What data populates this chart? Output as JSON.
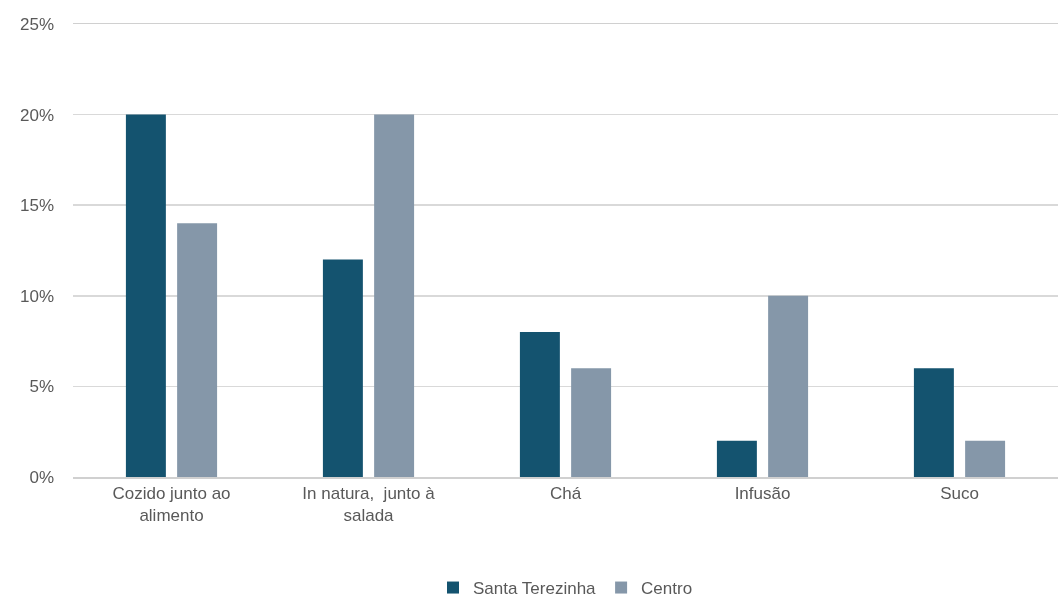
{
  "chart_data": {
    "type": "bar",
    "categories": [
      "Cozido junto ao alimento",
      "In natura,  junto à salada",
      "Chá",
      "Infusão",
      "Suco"
    ],
    "series": [
      {
        "name": "Santa Terezinha",
        "color": "#14536f",
        "values": [
          20,
          12,
          8,
          2,
          6
        ]
      },
      {
        "name": "Centro",
        "color": "#8597a9",
        "values": [
          14,
          20,
          6,
          10,
          2
        ]
      }
    ],
    "ylim": [
      0,
      25
    ],
    "yticks": [
      {
        "value": 0,
        "label": "0%"
      },
      {
        "value": 5,
        "label": "5%"
      },
      {
        "value": 10,
        "label": "10%"
      },
      {
        "value": 15,
        "label": "15%"
      },
      {
        "value": 20,
        "label": "20%"
      },
      {
        "value": 25,
        "label": "25%"
      }
    ],
    "grid": "y",
    "legend": "bottom"
  }
}
